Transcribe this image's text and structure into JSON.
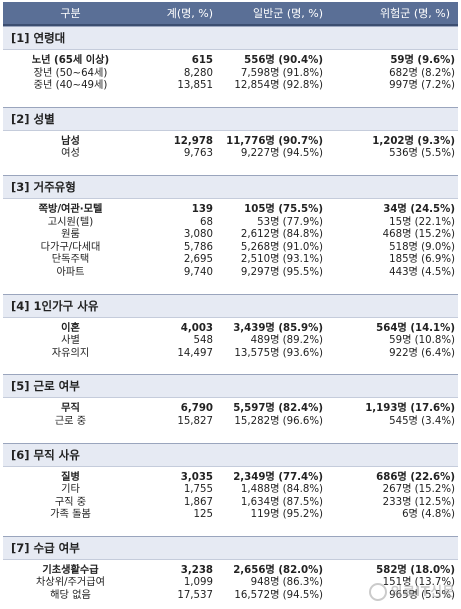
{
  "header": {
    "col1": "구분",
    "col2": "계(명, %)",
    "col3": "일반군 (명, %)",
    "col4": "위험군 (명, %)"
  },
  "sections": [
    {
      "title": "[1] 연령대",
      "rows": [
        {
          "label": "노년 (65세 이상)",
          "total": "615",
          "general": "556명 (90.4%)",
          "risk": "59명 (9.6%)",
          "highlight": true
        },
        {
          "label": "장년 (50~64세)",
          "total": "8,280",
          "general": "7,598명 (91.8%)",
          "risk": "682명 (8.2%)",
          "highlight": false
        },
        {
          "label": "중년 (40~49세)",
          "total": "13,851",
          "general": "12,854명 (92.8%)",
          "risk": "997명 (7.2%)",
          "highlight": false
        }
      ]
    },
    {
      "title": "[2] 성별",
      "rows": [
        {
          "label": "남성",
          "total": "12,978",
          "general": "11,776명 (90.7%)",
          "risk": "1,202명 (9.3%)",
          "highlight": true
        },
        {
          "label": "여성",
          "total": "9,763",
          "general": "9,227명 (94.5%)",
          "risk": "536명 (5.5%)",
          "highlight": false
        }
      ]
    },
    {
      "title": "[3] 거주유형",
      "rows": [
        {
          "label": "쪽방/여관·모텔",
          "total": "139",
          "general": "105명 (75.5%)",
          "risk": "34명 (24.5%)",
          "highlight": true
        },
        {
          "label": "고시원(텔)",
          "total": "68",
          "general": "53명 (77.9%)",
          "risk": "15명 (22.1%)",
          "highlight": false
        },
        {
          "label": "원룸",
          "total": "3,080",
          "general": "2,612명 (84.8%)",
          "risk": "468명 (15.2%)",
          "highlight": false
        },
        {
          "label": "다가구/다세대",
          "total": "5,786",
          "general": "5,268명 (91.0%)",
          "risk": "518명 (9.0%)",
          "highlight": false
        },
        {
          "label": "단독주택",
          "total": "2,695",
          "general": "2,510명 (93.1%)",
          "risk": "185명 (6.9%)",
          "highlight": false
        },
        {
          "label": "아파트",
          "total": "9,740",
          "general": "9,297명 (95.5%)",
          "risk": "443명 (4.5%)",
          "highlight": false
        }
      ]
    },
    {
      "title": "[4] 1인가구 사유",
      "rows": [
        {
          "label": "이혼",
          "total": "4,003",
          "general": "3,439명 (85.9%)",
          "risk": "564명 (14.1%)",
          "highlight": true
        },
        {
          "label": "사별",
          "total": "548",
          "general": "489명 (89.2%)",
          "risk": "59명 (10.8%)",
          "highlight": false
        },
        {
          "label": "자유의지",
          "total": "14,497",
          "general": "13,575명 (93.6%)",
          "risk": "922명 (6.4%)",
          "highlight": false
        }
      ]
    },
    {
      "title": "[5] 근로 여부",
      "rows": [
        {
          "label": "무직",
          "total": "6,790",
          "general": "5,597명 (82.4%)",
          "risk": "1,193명 (17.6%)",
          "highlight": true
        },
        {
          "label": "근로 중",
          "total": "15,827",
          "general": "15,282명 (96.6%)",
          "risk": "545명 (3.4%)",
          "highlight": false
        }
      ]
    },
    {
      "title": "[6] 무직 사유",
      "rows": [
        {
          "label": "질병",
          "total": "3,035",
          "general": "2,349명 (77.4%)",
          "risk": "686명 (22.6%)",
          "highlight": true
        },
        {
          "label": "기타",
          "total": "1,755",
          "general": "1,488명 (84.8%)",
          "risk": "267명 (15.2%)",
          "highlight": false
        },
        {
          "label": "구직 중",
          "total": "1,867",
          "general": "1,634명 (87.5%)",
          "risk": "233명 (12.5%)",
          "highlight": false
        },
        {
          "label": "가족 돌봄",
          "total": "125",
          "general": "119명 (95.2%)",
          "risk": "6명 (4.8%)",
          "highlight": false
        }
      ]
    },
    {
      "title": "[7] 수급 여부",
      "rows": [
        {
          "label": "기초생활수급",
          "total": "3,238",
          "general": "2,656명 (82.0%)",
          "risk": "582명 (18.0%)",
          "highlight": true
        },
        {
          "label": "차상위/주거급여",
          "total": "1,099",
          "general": "948명 (86.3%)",
          "risk": "151명 (13.7%)",
          "highlight": false
        },
        {
          "label": "해당 없음",
          "total": "17,537",
          "general": "16,572명 (94.5%)",
          "risk": "965명 (5.5%)",
          "highlight": false
        }
      ]
    }
  ],
  "watermark": "의료IT신문"
}
